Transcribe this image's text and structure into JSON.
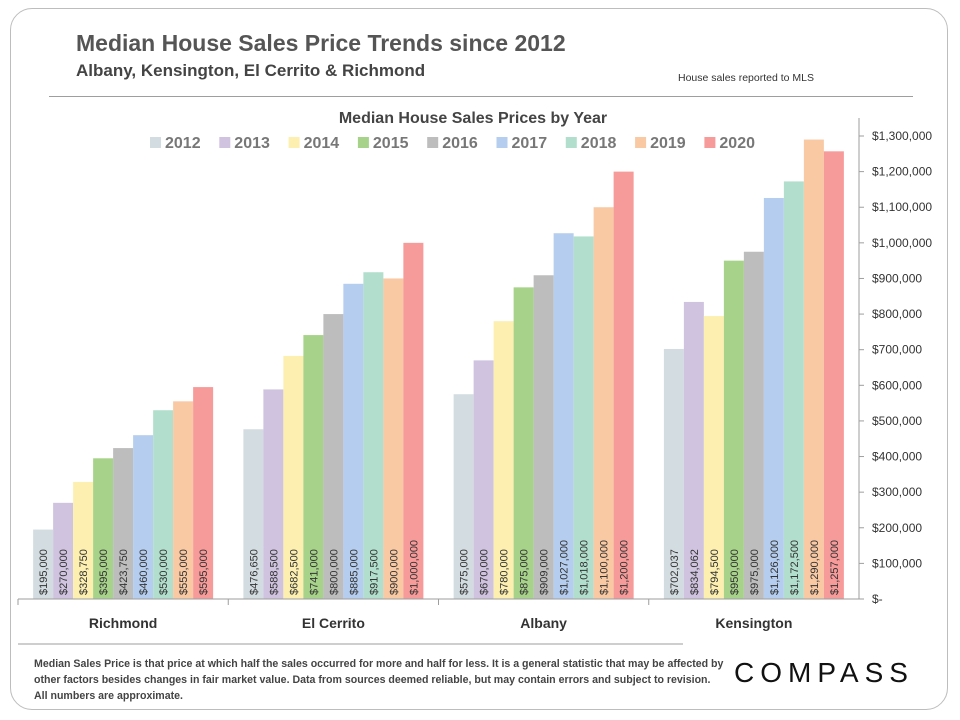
{
  "header": {
    "title": "Median House Sales Price Trends since 2012",
    "subtitle": "Albany, Kensington,  El Cerrito & Richmond",
    "source_note": "House sales reported to MLS"
  },
  "footer": {
    "footnote": "Median Sales Price is that price at which half the sales occurred for more and half for less. It is a general statistic that may be affected by other factors besides changes in fair market value. Data from sources deemed reliable, but may contain errors and subject to revision.  All numbers are approximate.",
    "logo_text": "COMPASS"
  },
  "chart_data": {
    "type": "bar",
    "title": "Median House Sales Prices by Year",
    "xlabel": "",
    "ylabel": "",
    "ylim": [
      0,
      1300000
    ],
    "y_ticks": [
      0,
      100000,
      200000,
      300000,
      400000,
      500000,
      600000,
      700000,
      800000,
      900000,
      1000000,
      1100000,
      1200000,
      1300000
    ],
    "y_tick_labels": [
      "$-",
      "$100,000",
      "$200,000",
      "$300,000",
      "$400,000",
      "$500,000",
      "$600,000",
      "$700,000",
      "$800,000",
      "$900,000",
      "$1,000,000",
      "$1,100,000",
      "$1,200,000",
      "$1,300,000"
    ],
    "y_axis_side": "right",
    "grid": false,
    "legend_position": "top",
    "categories": [
      "Richmond",
      "El Cerrito",
      "Albany",
      "Kensington"
    ],
    "series": [
      {
        "name": "2012",
        "color": "#d3dde1",
        "values": [
          195000,
          476650,
          575000,
          702037
        ],
        "labels": [
          "$195,000",
          "$476,650",
          "$575,000",
          "$702,037"
        ]
      },
      {
        "name": "2013",
        "color": "#cfc3e0",
        "values": [
          270000,
          588500,
          670000,
          834062
        ],
        "labels": [
          "$270,000",
          "$588,500",
          "$670,000",
          "$834,062"
        ]
      },
      {
        "name": "2014",
        "color": "#fcefb0",
        "values": [
          328750,
          682500,
          780000,
          794500
        ],
        "labels": [
          "$328,750",
          "$682,500",
          "$780,000",
          "$794,500"
        ]
      },
      {
        "name": "2015",
        "color": "#a6d289",
        "values": [
          395000,
          741000,
          875000,
          950000
        ],
        "labels": [
          "$395,000",
          "$741,000",
          "$875,000",
          "$950,000"
        ]
      },
      {
        "name": "2016",
        "color": "#bdbdbd",
        "values": [
          423750,
          800000,
          909000,
          975000
        ],
        "labels": [
          "$423,750",
          "$800,000",
          "$909,000",
          "$975,000"
        ]
      },
      {
        "name": "2017",
        "color": "#b5cdee",
        "values": [
          460000,
          885000,
          1027000,
          1126000
        ],
        "labels": [
          "$460,000",
          "$885,000",
          "$1,027,000",
          "$1,126,000"
        ]
      },
      {
        "name": "2018",
        "color": "#b2dfcd",
        "values": [
          530000,
          917500,
          1018000,
          1172500
        ],
        "labels": [
          "$530,000",
          "$917,500",
          "$1,018,000",
          "$1,172,500"
        ]
      },
      {
        "name": "2019",
        "color": "#f8c9a3",
        "values": [
          555000,
          900000,
          1100000,
          1290000
        ],
        "labels": [
          "$555,000",
          "$900,000",
          "$1,100,000",
          "$1,290,000"
        ]
      },
      {
        "name": "2020",
        "color": "#f79a9a",
        "values": [
          595000,
          1000000,
          1200000,
          1257000
        ],
        "labels": [
          "$595,000",
          "$1,000,000",
          "$1,200,000",
          "$1,257,000"
        ]
      }
    ]
  }
}
